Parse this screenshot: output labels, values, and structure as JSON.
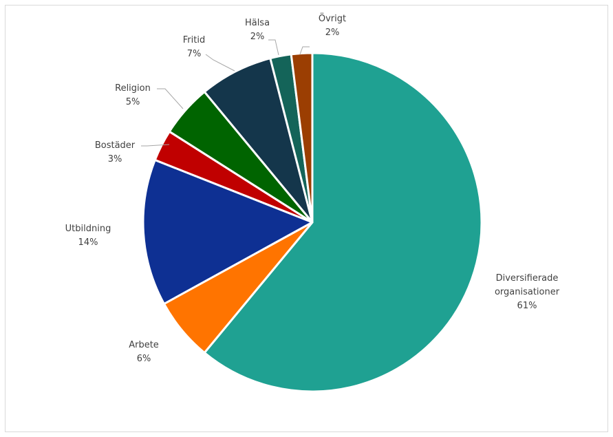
{
  "chart_data": {
    "type": "pie",
    "title": "",
    "categories": [
      "Diversifierade organisationer",
      "Arbete",
      "Utbildning",
      "Bostäder",
      "Religion",
      "Fritid",
      "Hälsa",
      "Övrigt"
    ],
    "values": [
      61,
      6,
      14,
      3,
      5,
      7,
      2,
      2
    ],
    "colors": [
      "#1fa192",
      "#ff7400",
      "#0e3093",
      "#c00000",
      "#006400",
      "#14364b",
      "#146459",
      "#9b3e02"
    ],
    "legend": "none",
    "labels": [
      {
        "lines": [
          "Diversifierade",
          "organisationer"
        ],
        "pct": "61%"
      },
      {
        "lines": [
          "Arbete"
        ],
        "pct": "6%"
      },
      {
        "lines": [
          "Utbildning"
        ],
        "pct": "14%"
      },
      {
        "lines": [
          "Bostäder"
        ],
        "pct": "3%"
      },
      {
        "lines": [
          "Religion"
        ],
        "pct": "5%"
      },
      {
        "lines": [
          "Fritid"
        ],
        "pct": "7%"
      },
      {
        "lines": [
          "Hälsa"
        ],
        "pct": "2%"
      },
      {
        "lines": [
          "Övrigt"
        ],
        "pct": "2%"
      }
    ]
  }
}
